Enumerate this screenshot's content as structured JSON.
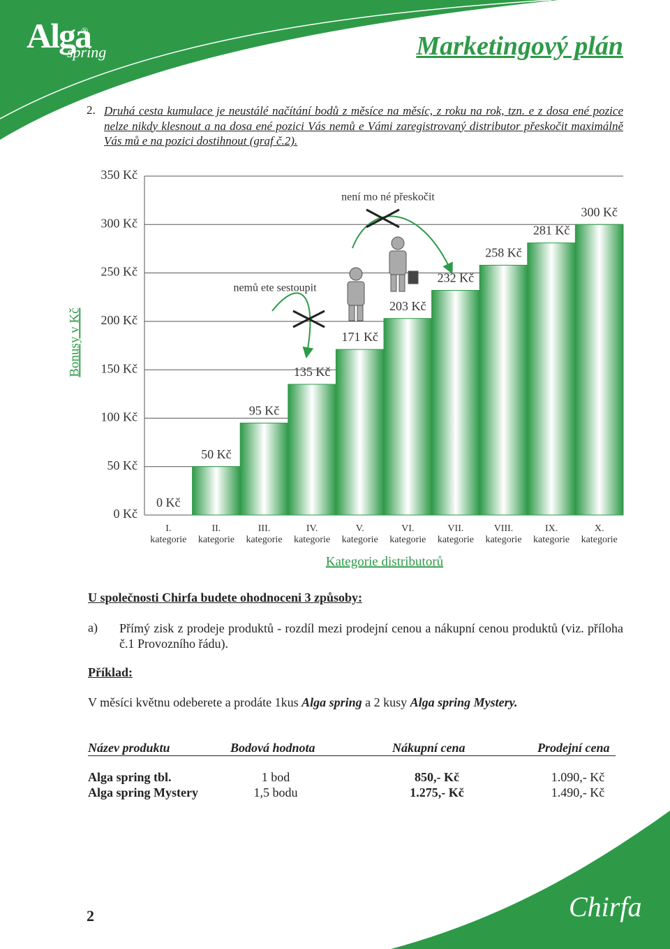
{
  "header": {
    "logo": "Alga",
    "logo_mark": "®",
    "logo_sub": "spring",
    "title": "Marketingový plán"
  },
  "intro": {
    "number": "2.",
    "text": "Druhá cesta kumulace je neustálé načítání bodů z měsíce na měsíc, z roku na rok, tzn.  e z dosa ené pozice nelze nikdy klesnout a na dosa ené pozici Vás nemů e Vámi zaregistrovaný distributor přeskočit maximálně Vás mů e na pozici dostihnout (graf č.2)."
  },
  "chart_data": {
    "type": "bar",
    "categories": [
      "I. kategorie",
      "II. kategorie",
      "III. kategorie",
      "IV. kategorie",
      "V. kategorie",
      "VI. kategorie",
      "VII. kategorie",
      "VIII. kategorie",
      "IX. kategorie",
      "X. kategorie"
    ],
    "values": [
      0,
      50,
      95,
      135,
      171,
      203,
      232,
      258,
      281,
      300
    ],
    "value_labels": [
      "0 Kč",
      "50 Kč",
      "95 Kč",
      "135 Kč",
      "171 Kč",
      "203 Kč",
      "232 Kč",
      "258 Kč",
      "281 Kč",
      "300 Kč"
    ],
    "color": "#2e9a48",
    "ylim": [
      0,
      350
    ],
    "yticks": [
      {
        "value": 0,
        "label": "0 Kč"
      },
      {
        "value": 50,
        "label": "50 Kč"
      },
      {
        "value": 100,
        "label": "100 Kč"
      },
      {
        "value": 150,
        "label": "150 Kč"
      },
      {
        "value": 200,
        "label": "200 Kč"
      },
      {
        "value": 250,
        "label": "250 Kč"
      },
      {
        "value": 300,
        "label": "300 Kč"
      },
      {
        "value": 350,
        "label": "350 Kč"
      }
    ],
    "grid": true,
    "x_label": "Kategorie distributorů",
    "y_label": "Bonusy v Kč",
    "annotations": [
      "nemů ete sestoupit",
      "není mo né přeskočit"
    ]
  },
  "section": {
    "heading": "U společnosti Chirfa budete ohodnoceni 3 způsoby:",
    "item_label": "a)",
    "item_text": "Přímý zisk z prodeje produktů - rozdíl mezi prodejní cenou a nákupní cenou produktů (viz. příloha č.1 Provozního řádu).",
    "example_heading": "Příklad:",
    "example_parts": [
      "V měsíci květnu odeberete a prodáte 1kus ",
      "Alga spring",
      " a 2 kusy ",
      "Alga spring Mystery."
    ]
  },
  "table": {
    "headers": [
      "Název produktu",
      "Bodová hodnota",
      "Nákupní cena",
      "Prodejní cena"
    ],
    "rows": [
      [
        "Alga spring tbl.",
        "1 bod",
        "850,- Kč",
        "1.090,- Kč"
      ],
      [
        "Alga spring Mystery",
        "1,5 bodu",
        "1.275,- Kč",
        "1.490,- Kč"
      ]
    ]
  },
  "footer": {
    "page_number": "2",
    "logo": "Chirfa"
  }
}
